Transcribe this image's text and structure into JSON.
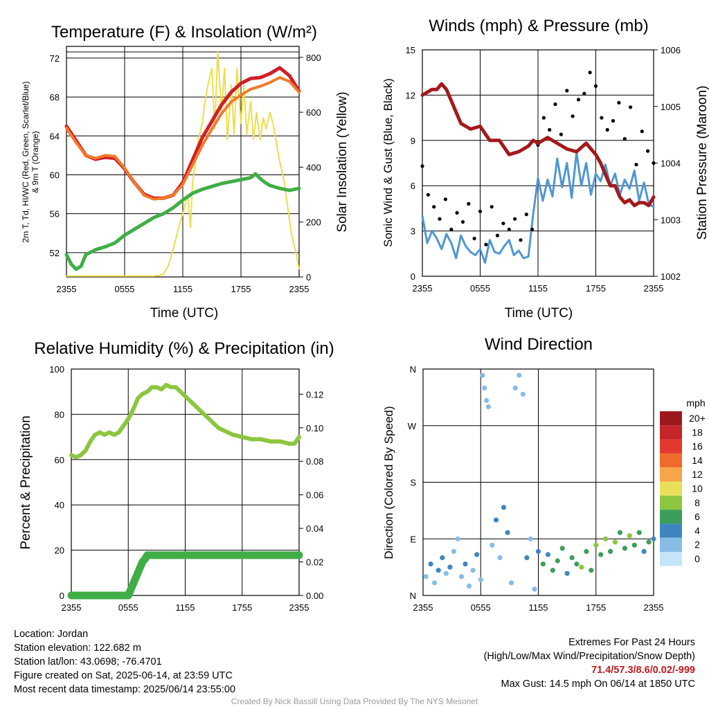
{
  "colors": {
    "temp": "#d21e26",
    "feels": "#2e9a40",
    "dew": "#3fae45",
    "t9m": "#f07a2a",
    "solar": "#f0dc4a",
    "wind": "#4e97d3",
    "gust": "#000000",
    "pressure": "#a31a1c",
    "rh": "#8cc63f",
    "precip": "#3fae45"
  },
  "speed_colorbar": {
    "title": "mph",
    "labels": [
      "20+",
      "18",
      "16",
      "14",
      "12",
      "10",
      "8",
      "6",
      "4",
      "2",
      "0"
    ],
    "colors": [
      "#9c1a1f",
      "#c4262a",
      "#e2382e",
      "#f06a2b",
      "#f8a54a",
      "#e8e05a",
      "#8cc63f",
      "#3d9e5a",
      "#3f86c0",
      "#86bde6",
      "#c4e5f7"
    ]
  },
  "chart_data": [
    {
      "id": "temp",
      "type": "line",
      "title": "Temperature (F) & Insolation (W/m²)",
      "xlabel": "Time (UTC)",
      "ylabel_lines": [
        "2m T, Td, HI/WC (Red, Green, Scarlet/Blue)",
        "& 9m T (Orange)"
      ],
      "y2label": "Solar Insolation (Yellow)",
      "xticks": [
        "2355",
        "0555",
        "1155",
        "1755",
        "2355"
      ],
      "yticks": [
        "52",
        "56",
        "60",
        "64",
        "68",
        "72"
      ],
      "y2ticks": [
        "0",
        "200",
        "400",
        "600",
        "800"
      ],
      "xlim": [
        0,
        24
      ],
      "ylim": [
        49.5,
        73.2
      ],
      "y2lim": [
        0,
        840
      ],
      "series": [
        {
          "key": "solar",
          "x": [
            0,
            4,
            5,
            5.5,
            6,
            6.5,
            7,
            7.5,
            8,
            8.5,
            9,
            9.5,
            10,
            10.5,
            11,
            11.5,
            12,
            12.5,
            12.8,
            13,
            13.3,
            13.6,
            14,
            14.3,
            14.6,
            15,
            15.3,
            15.6,
            16,
            16.3,
            16.6,
            17,
            17.3,
            17.6,
            18,
            18.3,
            18.6,
            19,
            19.3,
            19.6,
            20,
            20.3,
            20.6,
            21,
            21.3,
            21.6,
            22,
            22.4,
            22.8,
            23.2,
            23.6,
            24
          ],
          "y": [
            3,
            3,
            3,
            3,
            3,
            3,
            3,
            3,
            3,
            3,
            3,
            5,
            10,
            40,
            100,
            170,
            230,
            300,
            180,
            340,
            420,
            500,
            560,
            640,
            700,
            760,
            540,
            820,
            600,
            760,
            500,
            700,
            520,
            760,
            560,
            700,
            520,
            640,
            500,
            600,
            500,
            580,
            540,
            600,
            560,
            500,
            420,
            360,
            260,
            160,
            100,
            30
          ]
        },
        {
          "key": "temp",
          "x": [
            0,
            1,
            2,
            3,
            4,
            5,
            6,
            7,
            8,
            9,
            10,
            11,
            12,
            13,
            14,
            15,
            16,
            17,
            18,
            19,
            20,
            21,
            22,
            23,
            24
          ],
          "y": [
            65,
            63.5,
            62,
            61.6,
            61.8,
            61.7,
            60.6,
            59.2,
            58,
            57.6,
            57.6,
            57.9,
            59.2,
            61.5,
            63.8,
            65.5,
            67.2,
            68.5,
            69.4,
            69.9,
            70,
            70.4,
            71,
            70.2,
            68.6
          ]
        },
        {
          "key": "t9m",
          "x": [
            0,
            1,
            2,
            3,
            4,
            5,
            6,
            7,
            8,
            9,
            10,
            11,
            12,
            13,
            14,
            15,
            16,
            17,
            18,
            19,
            20,
            21,
            22,
            23,
            24
          ],
          "y": [
            64.8,
            63.3,
            62,
            61.7,
            62,
            61.9,
            60.7,
            59.2,
            57.9,
            57.5,
            57.6,
            57.9,
            59,
            61,
            63,
            64.7,
            66.3,
            67.5,
            68.2,
            68.8,
            69.1,
            69.5,
            70,
            69.6,
            68.5
          ]
        },
        {
          "key": "dew",
          "x": [
            0,
            0.5,
            1,
            1.5,
            2,
            3,
            4,
            5,
            6,
            7,
            8,
            9,
            10,
            11,
            12,
            13,
            14,
            15,
            16,
            17,
            18,
            19,
            19.5,
            20,
            20.5,
            21,
            22,
            23,
            24
          ],
          "y": [
            51.8,
            50.8,
            50.3,
            50.6,
            51.8,
            52.3,
            52.6,
            53,
            53.8,
            54.4,
            55,
            55.6,
            56,
            56.6,
            57.4,
            58.1,
            58.5,
            58.8,
            59.1,
            59.3,
            59.5,
            59.7,
            60.1,
            59.6,
            59.2,
            58.9,
            58.6,
            58.4,
            58.6
          ]
        }
      ]
    },
    {
      "id": "winds",
      "type": "scatter",
      "title": "Winds (mph) & Pressure (mb)",
      "xlabel": "Time (UTC)",
      "ylabel": "Sonic Wind & Gust (Blue, Black)",
      "y2label": "Station Pressure (Maroon)",
      "xticks": [
        "2355",
        "0555",
        "1155",
        "1755",
        "2355"
      ],
      "yticks": [
        "0",
        "3",
        "6",
        "9",
        "12",
        "15"
      ],
      "y2ticks": [
        "1002",
        "1003",
        "1004",
        "1005",
        "1006"
      ],
      "xlim": [
        0,
        24
      ],
      "ylim": [
        0,
        15
      ],
      "y2lim": [
        1002,
        1006
      ],
      "wind": {
        "x": [
          0,
          0.5,
          1,
          1.5,
          2,
          2.5,
          3,
          3.5,
          4,
          4.5,
          5,
          5.5,
          6,
          6.5,
          7,
          7.5,
          8,
          8.5,
          9,
          9.5,
          10,
          10.5,
          11,
          11.5,
          12,
          12.5,
          13,
          13.5,
          14,
          14.5,
          15,
          15.5,
          16,
          16.5,
          17,
          17.5,
          18,
          18.5,
          19,
          19.5,
          20,
          20.5,
          21,
          21.5,
          22,
          22.5,
          23,
          23.5,
          24
        ],
        "y": [
          4,
          2.2,
          3,
          2.5,
          1.8,
          2.8,
          2.2,
          1.2,
          2.7,
          2,
          1.6,
          1.4,
          1.8,
          0.9,
          2.4,
          1.6,
          1.5,
          2,
          2.4,
          1.4,
          1.7,
          1.2,
          1.3,
          4.1,
          6.5,
          5,
          6.4,
          5.3,
          7.8,
          5.9,
          7.5,
          5.2,
          8.2,
          6,
          7.5,
          5.4,
          6.8,
          6.3,
          7.4,
          6,
          6.8,
          5.4,
          6.4,
          5.8,
          7,
          5,
          6.2,
          4.8,
          4.6
        ]
      },
      "gust": {
        "x": [
          0,
          0.6,
          1.2,
          1.8,
          2.4,
          3,
          3.6,
          4.2,
          4.8,
          5.4,
          6,
          6.6,
          7.2,
          7.8,
          8.4,
          9,
          9.6,
          10.2,
          10.8,
          11.4,
          12,
          12.6,
          13.2,
          13.8,
          14.4,
          15,
          15.6,
          16.2,
          16.8,
          17.4,
          18,
          18.6,
          19.2,
          19.8,
          20.4,
          21,
          21.6,
          22.2,
          22.8,
          23.4,
          24
        ],
        "y": [
          7.3,
          5.4,
          4.6,
          3.8,
          5.1,
          3.1,
          4.2,
          3.6,
          4.8,
          2.5,
          4.3,
          2.1,
          4.6,
          2.7,
          3.5,
          3.1,
          3.8,
          2.4,
          4.1,
          3.1,
          8.7,
          10.5,
          9.7,
          11.4,
          9.4,
          12.3,
          10.6,
          11.7,
          12.1,
          13.5,
          12.6,
          10.5,
          9.7,
          10.3,
          11.5,
          9.1,
          11.2,
          7.4,
          9.6,
          8.3,
          7.5
        ]
      },
      "pressure": {
        "x": [
          0,
          0.5,
          1,
          1.5,
          2,
          2.5,
          3,
          3.5,
          4,
          5,
          6,
          7,
          8,
          9,
          10,
          11,
          11.5,
          12,
          13,
          14,
          15,
          16,
          17,
          18,
          18.5,
          19,
          19.5,
          20,
          20.5,
          21,
          21.5,
          22,
          22.5,
          23,
          23.5,
          24
        ],
        "y": [
          1005.2,
          1005.25,
          1005.3,
          1005.3,
          1005.4,
          1005.3,
          1005.1,
          1004.9,
          1004.7,
          1004.6,
          1004.65,
          1004.4,
          1004.4,
          1004.15,
          1004.2,
          1004.3,
          1004.4,
          1004.35,
          1004.45,
          1004.35,
          1004.25,
          1004.2,
          1004.35,
          1004.15,
          1004.0,
          1003.8,
          1003.6,
          1003.6,
          1003.4,
          1003.3,
          1003.35,
          1003.25,
          1003.3,
          1003.3,
          1003.25,
          1003.4
        ]
      }
    },
    {
      "id": "rh",
      "type": "line",
      "title": "Relative Humidity (%) & Precipitation (in)",
      "ylabel": "Percent & Precipitation",
      "xticks": [
        "2355",
        "0555",
        "1155",
        "1755",
        "2355"
      ],
      "yticks": [
        "0",
        "20",
        "40",
        "60",
        "80",
        "100"
      ],
      "y2ticks": [
        "0.00",
        "0.02",
        "0.04",
        "0.06",
        "0.08",
        "0.10",
        "0.12"
      ],
      "xlim": [
        0,
        24
      ],
      "ylim": [
        0,
        100
      ],
      "y2lim": [
        0,
        0.135
      ],
      "rh": {
        "x": [
          0,
          0.5,
          1,
          1.5,
          2,
          2.5,
          3,
          3.5,
          4,
          4.5,
          5,
          5.5,
          6,
          6.5,
          7,
          7.5,
          8,
          8.5,
          9,
          9.5,
          10,
          10.5,
          11,
          11.5,
          12,
          12.5,
          13,
          13.5,
          14,
          14.5,
          15,
          15.5,
          16,
          17,
          18,
          19,
          20,
          21,
          22,
          23,
          23.5,
          24
        ],
        "y": [
          62,
          61,
          62,
          64,
          68,
          71,
          72,
          71,
          72,
          71,
          72,
          75,
          78,
          82,
          87,
          89,
          90,
          92,
          92,
          91,
          93,
          92,
          92,
          90,
          88,
          86,
          84,
          82,
          80,
          78,
          76,
          74,
          73,
          71,
          70,
          69,
          69,
          68,
          68,
          67,
          67,
          70
        ]
      },
      "precip": {
        "x": [
          0,
          6,
          6.3,
          6.6,
          6.9,
          7.2,
          7.5,
          7.8,
          8,
          24
        ],
        "y": [
          0,
          0,
          0.004,
          0.008,
          0.012,
          0.016,
          0.02,
          0.022,
          0.024,
          0.024
        ]
      }
    },
    {
      "id": "dir",
      "type": "scatter",
      "title": "Wind Direction",
      "ylabel": "Direction (Colored By Speed)",
      "xticks": [
        "2355",
        "0555",
        "1155",
        "1755",
        "2355"
      ],
      "yticks": [
        "N",
        "E",
        "S",
        "W",
        "N"
      ],
      "xlim": [
        0,
        24
      ],
      "ylim": [
        0,
        360
      ],
      "points": [
        [
          0.3,
          30,
          2
        ],
        [
          0.8,
          50,
          3
        ],
        [
          1.2,
          20,
          2
        ],
        [
          1.6,
          40,
          4
        ],
        [
          2,
          60,
          3
        ],
        [
          2.4,
          35,
          2
        ],
        [
          2.8,
          45,
          3
        ],
        [
          3.2,
          70,
          2
        ],
        [
          3.6,
          90,
          1
        ],
        [
          4,
          30,
          2
        ],
        [
          4.4,
          50,
          3
        ],
        [
          4.8,
          15,
          1
        ],
        [
          5.2,
          40,
          2
        ],
        [
          5.6,
          65,
          3
        ],
        [
          6,
          25,
          1
        ],
        [
          6.2,
          350,
          2
        ],
        [
          6.4,
          330,
          1
        ],
        [
          6.6,
          310,
          2
        ],
        [
          6.8,
          300,
          1
        ],
        [
          7.2,
          80,
          2
        ],
        [
          7.6,
          120,
          3
        ],
        [
          8,
          60,
          2
        ],
        [
          8.4,
          140,
          3
        ],
        [
          8.8,
          100,
          4
        ],
        [
          9.2,
          20,
          2
        ],
        [
          9.6,
          330,
          2
        ],
        [
          10,
          350,
          1
        ],
        [
          10.4,
          320,
          2
        ],
        [
          10.8,
          60,
          3
        ],
        [
          11.2,
          90,
          2
        ],
        [
          11.6,
          10,
          1
        ],
        [
          12,
          70,
          4
        ],
        [
          12.5,
          50,
          5
        ],
        [
          13,
          65,
          4
        ],
        [
          13.5,
          40,
          6
        ],
        [
          14,
          55,
          5
        ],
        [
          14.5,
          75,
          6
        ],
        [
          15,
          35,
          4
        ],
        [
          15.5,
          60,
          6
        ],
        [
          16,
          50,
          5
        ],
        [
          16.5,
          45,
          7
        ],
        [
          17,
          70,
          6
        ],
        [
          17.5,
          40,
          5
        ],
        [
          18,
          80,
          7
        ],
        [
          18.5,
          65,
          6
        ],
        [
          19,
          90,
          8
        ],
        [
          19.5,
          70,
          6
        ],
        [
          20,
          85,
          7
        ],
        [
          20.5,
          100,
          6
        ],
        [
          21,
          75,
          5
        ],
        [
          21.5,
          95,
          7
        ],
        [
          22,
          80,
          6
        ],
        [
          22.5,
          100,
          5
        ],
        [
          23,
          70,
          4
        ],
        [
          23.5,
          85,
          5
        ],
        [
          24,
          90,
          4
        ]
      ]
    }
  ],
  "info_left": [
    "Location: Jordan",
    "Station elevation: 122.682 m",
    "Station lat/lon: 43.0698; -76.4701",
    "Figure created on Sat, 2025-06-14, at 23:59 UTC",
    "Most recent data timestamp: 2025/06/14 23:55:00"
  ],
  "extremes": {
    "title": "Extremes For Past 24 Hours",
    "subtitle": "(High/Low/Max Wind/Precipitation/Snow Depth)",
    "values": "71.4/57.3/8.6/0.02/-999",
    "max_gust": "Max Gust: 14.5 mph On 06/14 at 1850 UTC"
  },
  "credit": "Created By Nick Bassill Using Data Provided By The NYS Mesonet"
}
